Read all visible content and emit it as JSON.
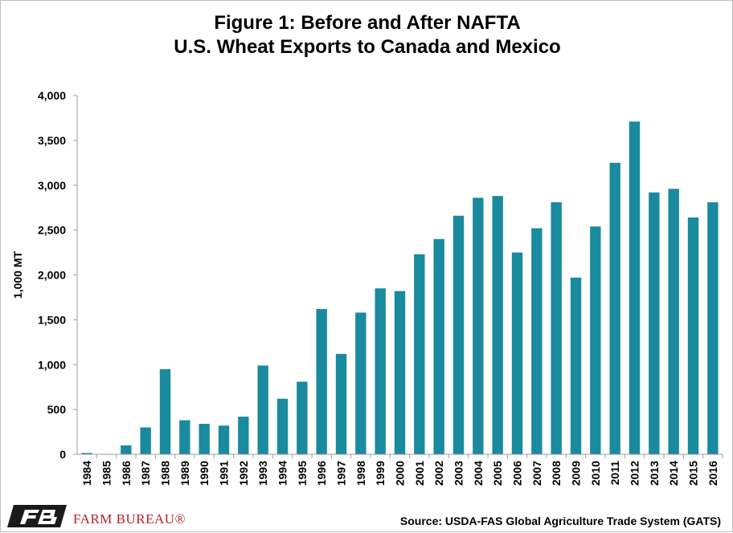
{
  "title": {
    "line1": "Figure 1: Before and After NAFTA",
    "line2": "U.S. Wheat Exports to Canada and Mexico"
  },
  "source": "Source: USDA-FAS Global Agriculture Trade System (GATS)",
  "logo": {
    "text": "FARM BUREAU®",
    "mark_letters": "FB"
  },
  "colors": {
    "bar": "#1A8A9F",
    "axis": "#9E9E9E",
    "text": "#000000",
    "logo": "#B8202A"
  },
  "chart_data": {
    "type": "bar",
    "title": "Figure 1: Before and After NAFTA U.S. Wheat Exports to Canada and Mexico",
    "xlabel": "",
    "ylabel": "1,000 MT",
    "ylim": [
      0,
      4000
    ],
    "yticks": [
      0,
      500,
      1000,
      1500,
      2000,
      2500,
      3000,
      3500,
      4000
    ],
    "ytick_labels": [
      "0",
      "500",
      "1,000",
      "1,500",
      "2,000",
      "2,500",
      "3,000",
      "3,500",
      "4,000"
    ],
    "grid": false,
    "legend": "none",
    "categories": [
      "1984",
      "1985",
      "1986",
      "1987",
      "1988",
      "1989",
      "1990",
      "1991",
      "1992",
      "1993",
      "1994",
      "1995",
      "1996",
      "1997",
      "1998",
      "1999",
      "2000",
      "2001",
      "2002",
      "2003",
      "2004",
      "2005",
      "2006",
      "2007",
      "2008",
      "2009",
      "2010",
      "2011",
      "2012",
      "2013",
      "2014",
      "2015",
      "2016"
    ],
    "values": [
      15,
      5,
      100,
      300,
      950,
      380,
      340,
      320,
      420,
      990,
      620,
      810,
      1620,
      1120,
      1580,
      1850,
      1820,
      2230,
      2400,
      2660,
      2860,
      2880,
      2250,
      2520,
      2810,
      1970,
      2540,
      3250,
      3710,
      2920,
      2960,
      2640,
      2810
    ]
  }
}
